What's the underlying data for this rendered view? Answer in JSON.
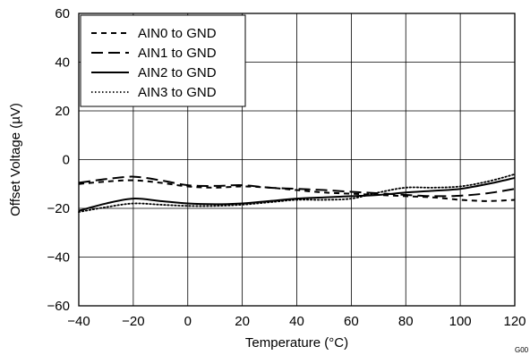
{
  "chart_data": {
    "type": "line",
    "title": "",
    "xlabel": "Temperature (°C)",
    "ylabel": "Offset Voltage (µV)",
    "xlim": [
      -40,
      120
    ],
    "ylim": [
      -60,
      60
    ],
    "x_ticks": [
      -40,
      -20,
      0,
      20,
      40,
      60,
      80,
      100,
      120
    ],
    "y_ticks": [
      -60,
      -40,
      -20,
      0,
      20,
      40,
      60
    ],
    "x_tick_labels": [
      "−40",
      "−20",
      "0",
      "20",
      "40",
      "60",
      "80",
      "100",
      "120"
    ],
    "y_tick_labels": [
      "−60",
      "−40",
      "−20",
      "0",
      "20",
      "40",
      "60"
    ],
    "grid": true,
    "legend_position": "top-left",
    "x": [
      -40,
      -30,
      -20,
      -10,
      0,
      10,
      20,
      30,
      40,
      50,
      60,
      70,
      80,
      90,
      100,
      110,
      120
    ],
    "series": [
      {
        "name": "AIN0 to GND",
        "dash": "short-dash",
        "values": [
          -10,
          -9,
          -8.5,
          -9.5,
          -11,
          -11.5,
          -11,
          -11.5,
          -12.5,
          -13.5,
          -14,
          -14.5,
          -15,
          -15.5,
          -16.5,
          -17,
          -16.5
        ]
      },
      {
        "name": "AIN1 to GND",
        "dash": "long-dash",
        "values": [
          -9.5,
          -8,
          -7,
          -8.5,
          -10.5,
          -10.8,
          -10.5,
          -11.5,
          -12,
          -12.5,
          -13.2,
          -13.8,
          -14.5,
          -15,
          -14.8,
          -13.8,
          -12
        ]
      },
      {
        "name": "AIN2 to GND",
        "dash": "solid",
        "values": [
          -21,
          -18,
          -16,
          -17,
          -18,
          -18.3,
          -18,
          -17,
          -16,
          -15.5,
          -15,
          -14.5,
          -13.5,
          -12.8,
          -12,
          -10,
          -7.5
        ]
      },
      {
        "name": "AIN3 to GND",
        "dash": "dotted",
        "values": [
          -21.5,
          -19.5,
          -18,
          -18.5,
          -19,
          -19,
          -18.5,
          -17.5,
          -16.5,
          -16.5,
          -16,
          -13.5,
          -11.5,
          -11.5,
          -11,
          -9,
          -6
        ]
      }
    ],
    "footnote": "G00"
  }
}
